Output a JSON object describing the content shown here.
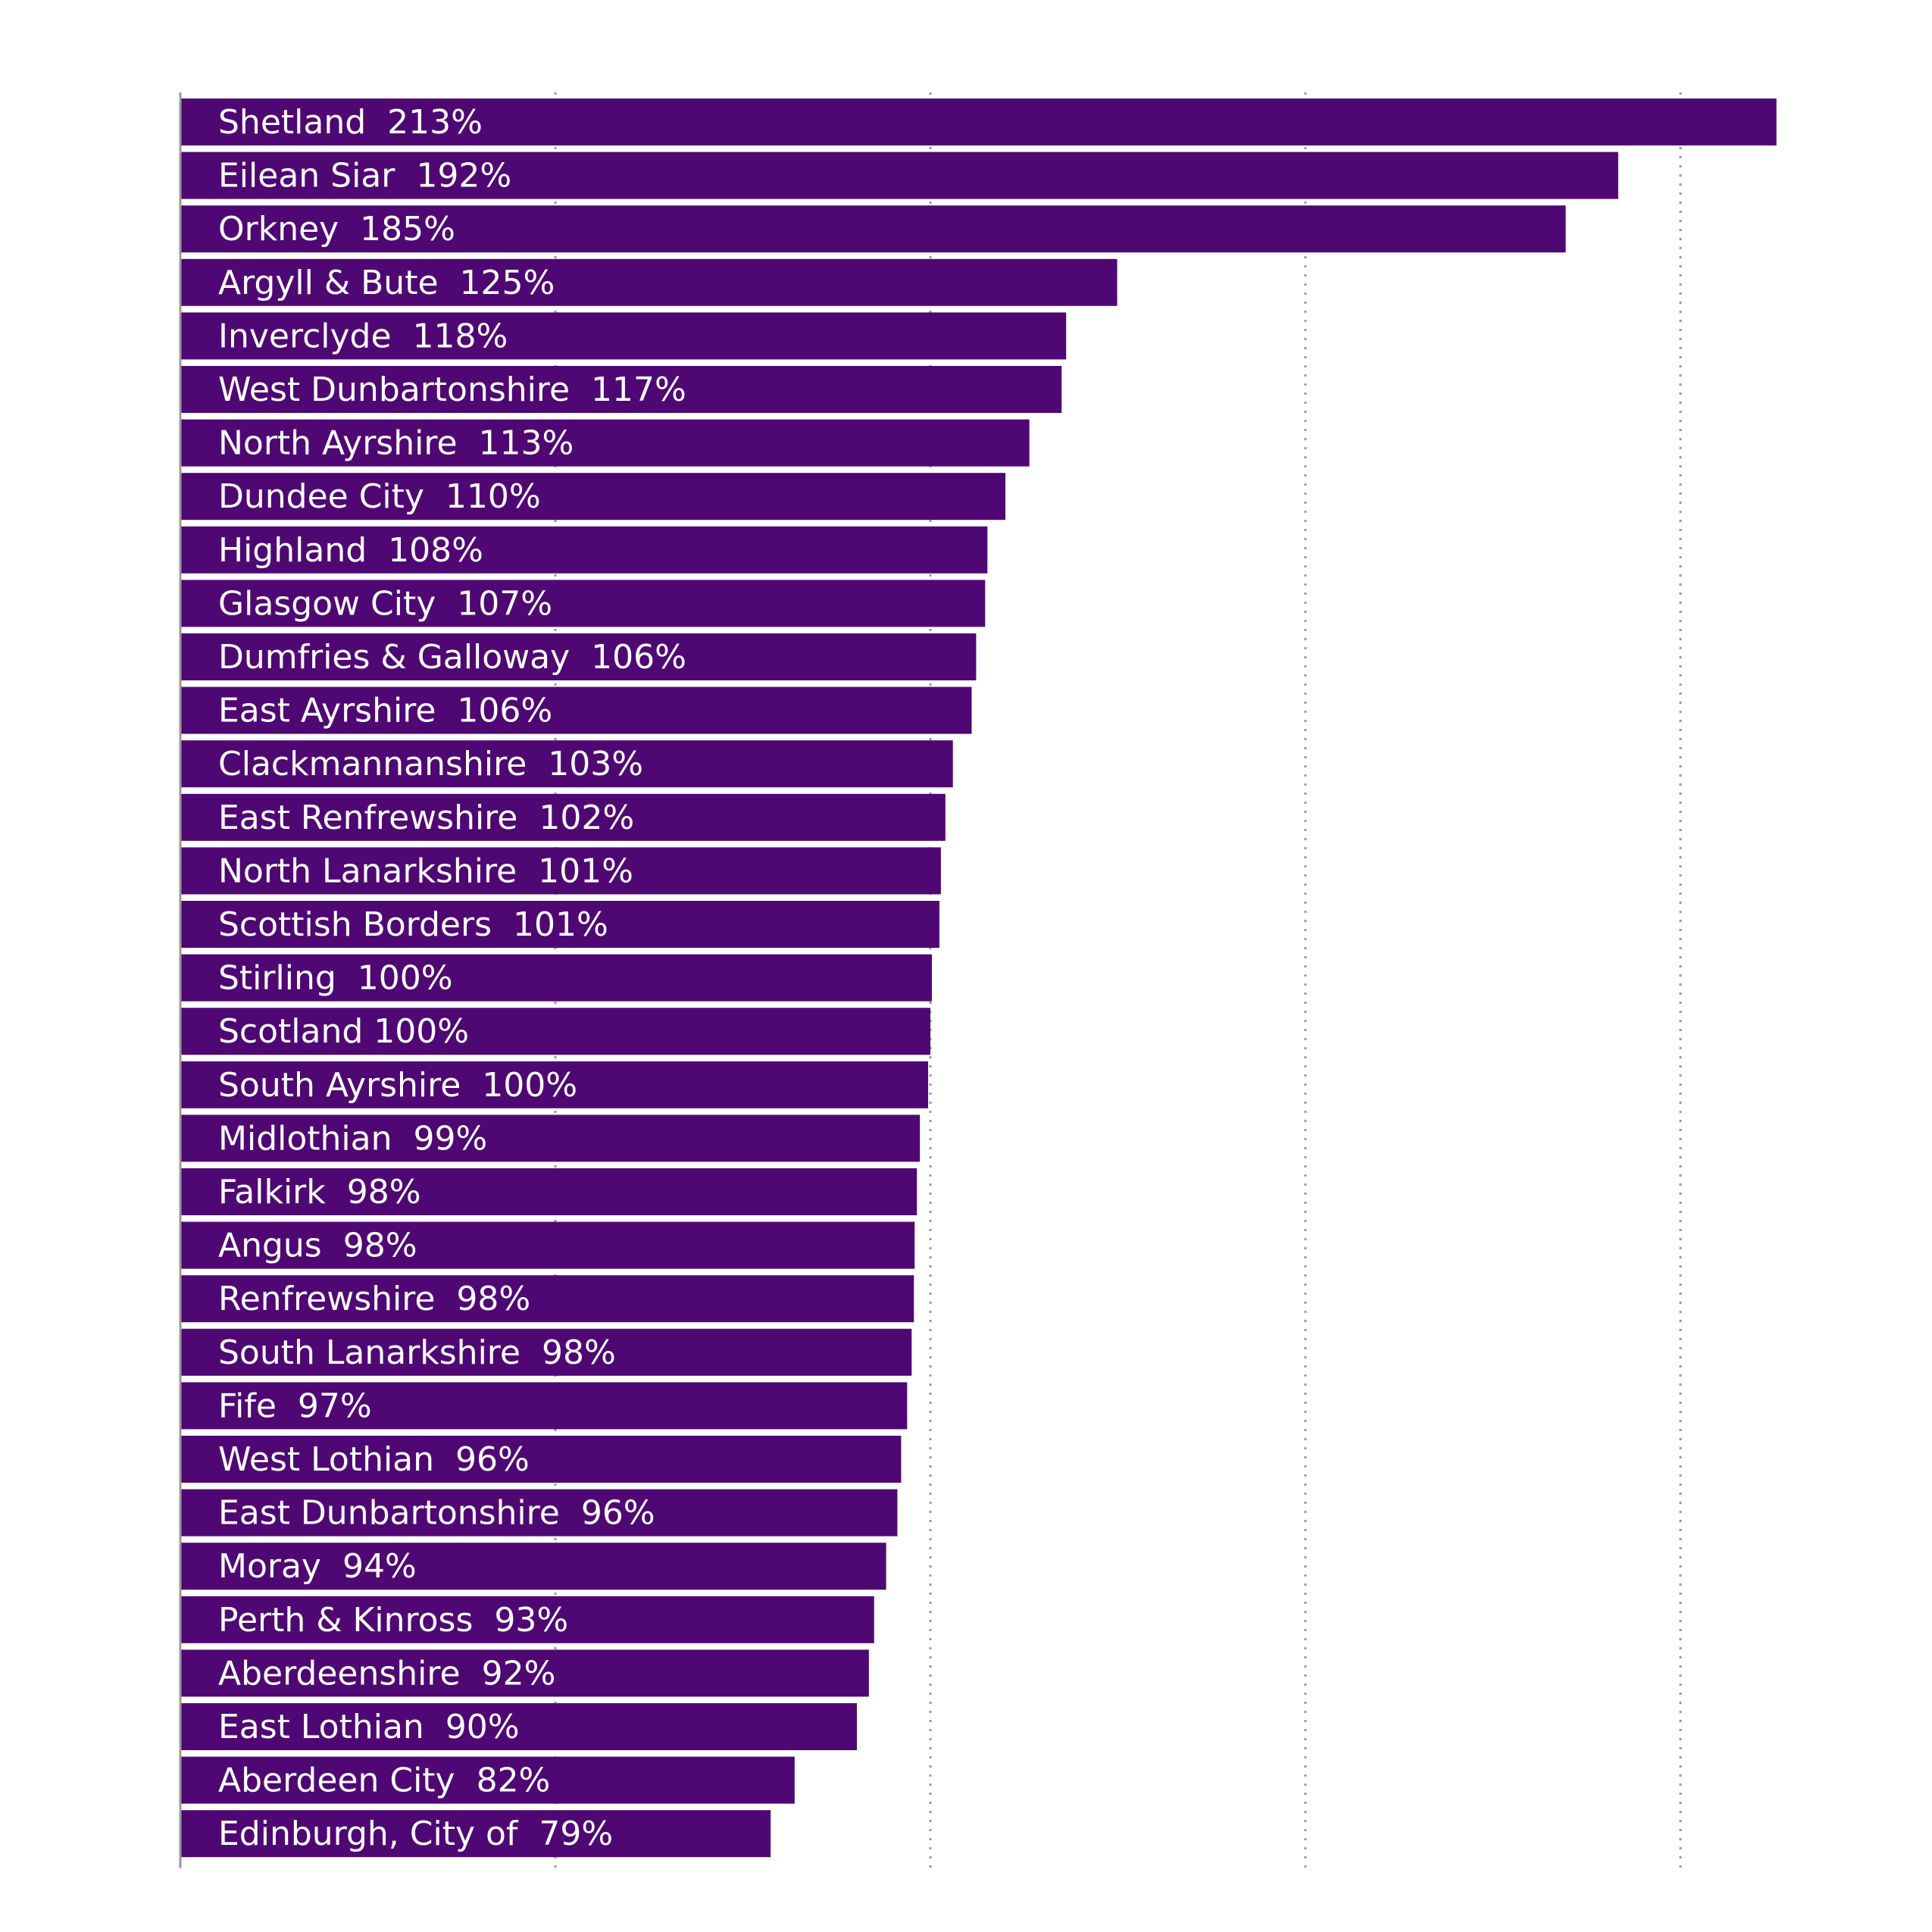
{
  "chart_data": {
    "type": "bar",
    "orientation": "horizontal",
    "title": "",
    "xlabel": "",
    "ylabel": "",
    "xlim": [
      0,
      210
    ],
    "grid": true,
    "legend": "none",
    "bar_color": "#4f0873",
    "grid_color": "#9a9a9a",
    "axis_color": "#9a9a9a",
    "categories": [
      "Shetland",
      "Eilean Siar",
      "Orkney",
      "Argyll & Bute",
      "Inverclyde",
      "West Dunbartonshire",
      "North Ayrshire",
      "Dundee City",
      "Highland",
      "Glasgow City",
      "Dumfries & Galloway",
      "East Ayrshire",
      "Clackmannanshire",
      "East Renfrewshire",
      "North Lanarkshire",
      "Scottish Borders",
      "Stirling",
      "Scotland",
      "South Ayrshire",
      "Midlothian",
      "Falkirk",
      "Angus",
      "Renfrewshire",
      "South Lanarkshire",
      "Fife",
      "West Lothian",
      "East Dunbartonshire",
      "Moray",
      "Perth & Kinross",
      "Aberdeenshire",
      "East Lothian",
      "Aberdeen City",
      "Edinburgh, City of"
    ],
    "values": [
      212.8,
      191.7,
      184.7,
      124.9,
      118.1,
      117.5,
      113.2,
      110.0,
      107.6,
      107.3,
      106.1,
      105.5,
      103.0,
      102.0,
      101.4,
      101.2,
      100.2,
      100.0,
      99.7,
      98.6,
      98.2,
      97.9,
      97.8,
      97.5,
      96.9,
      96.1,
      95.6,
      94.1,
      92.5,
      91.8,
      90.2,
      81.9,
      78.7
    ],
    "labels": [
      "Shetland  213%",
      "Eilean Siar  192%",
      "Orkney  185%",
      "Argyll & Bute  125%",
      "Inverclyde  118%",
      "West Dunbartonshire  117%",
      "North Ayrshire  113%",
      "Dundee City  110%",
      "Highland  108%",
      "Glasgow City  107%",
      "Dumfries & Galloway  106%",
      "East Ayrshire  106%",
      "Clackmannanshire  103%",
      "East Renfrewshire  102%",
      "North Lanarkshire  101%",
      "Scottish Borders  101%",
      "Stirling  100%",
      "Scotland 100%",
      "South Ayrshire  100%",
      "Midlothian  99%",
      "Falkirk  98%",
      "Angus  98%",
      "Renfrewshire  98%",
      "South Lanarkshire  98%",
      "Fife  97%",
      "West Lothian  96%",
      "East Dunbartonshire  96%",
      "Moray  94%",
      "Perth & Kinross  93%",
      "Aberdeenshire  92%",
      "East Lothian  90%",
      "Aberdeen City  82%",
      "Edinburgh, City of  79%"
    ]
  }
}
